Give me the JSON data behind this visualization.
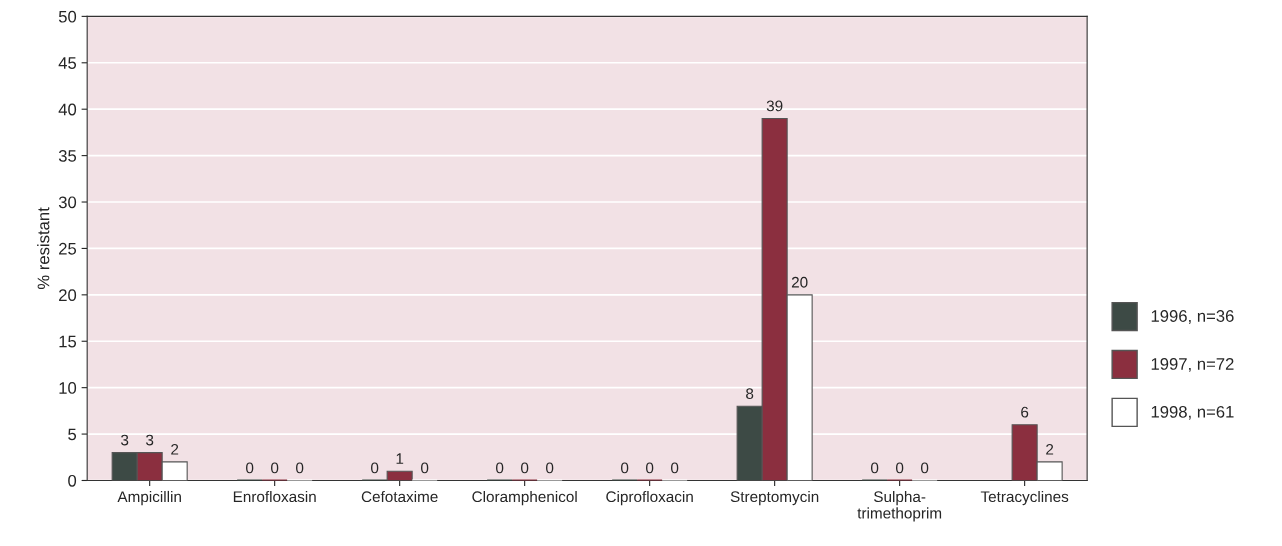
{
  "chart_data": {
    "type": "bar",
    "ylabel": "% resistant",
    "categories": [
      "Ampicillin",
      "Enrofloxasin",
      "Cefotaxime",
      "Cloramphenicol",
      "Ciprofloxacin",
      "Streptomycin",
      "Sulpha-\ntrimethoprim",
      "Tetracyclines"
    ],
    "series": [
      {
        "name": "1996, n=36",
        "color": "#3d4a45",
        "values": [
          3,
          0,
          0,
          0,
          0,
          8,
          0,
          null
        ]
      },
      {
        "name": "1997, n=72",
        "color": "#8b2f3f",
        "values": [
          3,
          0,
          1,
          0,
          0,
          39,
          0,
          6
        ]
      },
      {
        "name": "1998, n=61",
        "color": "#ffffff",
        "values": [
          2,
          0,
          0,
          0,
          0,
          20,
          0,
          2
        ]
      }
    ],
    "ylim": [
      0,
      50
    ],
    "yticks": [
      0,
      5,
      10,
      15,
      20,
      25,
      30,
      35,
      40,
      45,
      50
    ],
    "grid": "y",
    "legend": "right",
    "data_labels": true
  }
}
